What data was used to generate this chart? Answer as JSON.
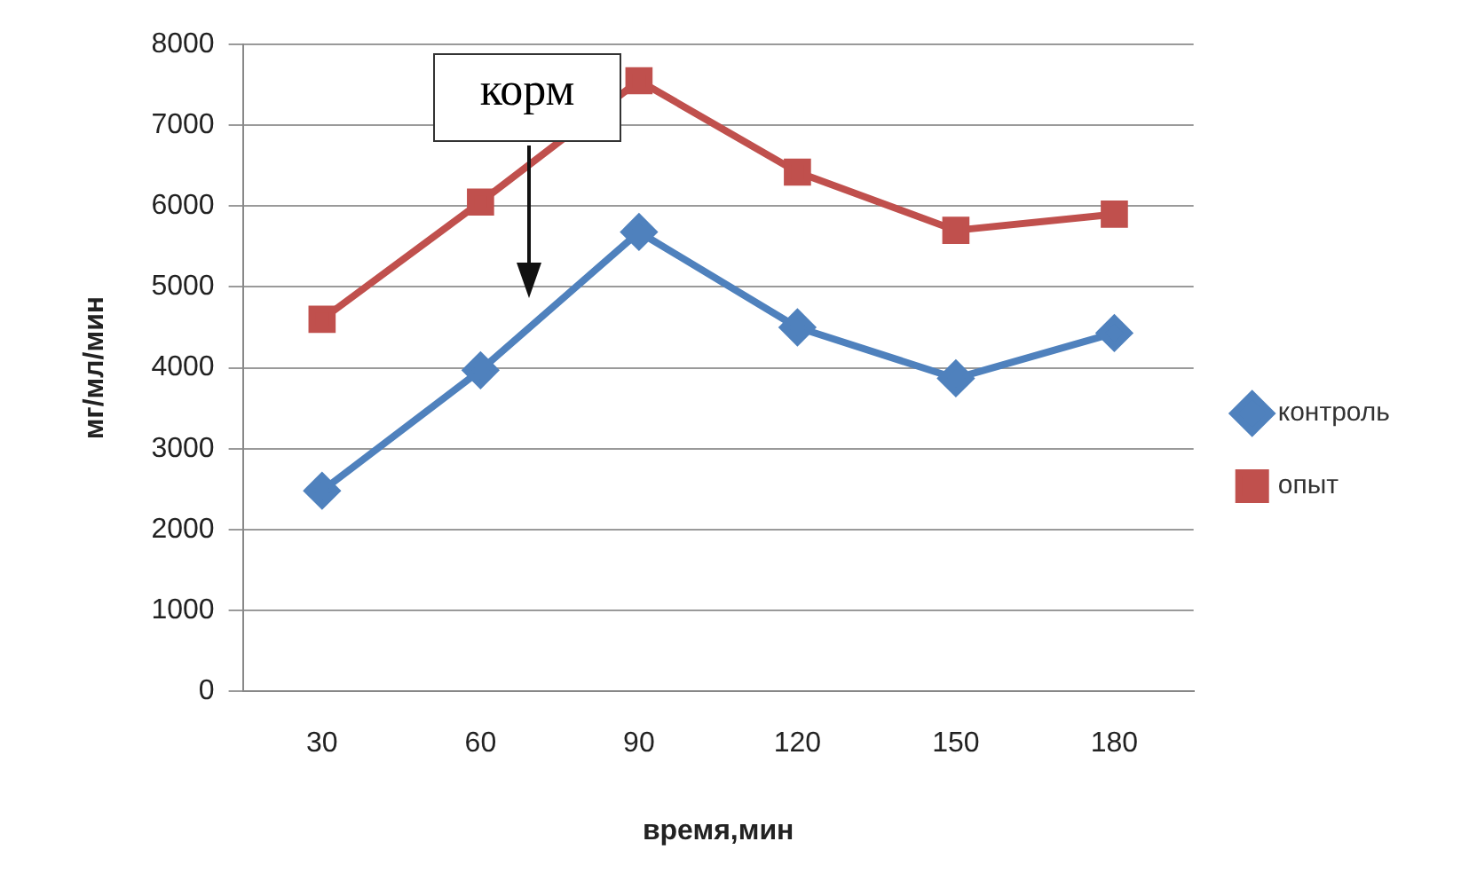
{
  "chart_data": {
    "type": "line",
    "xlabel": "время,мин",
    "ylabel": "мг/мл/мин",
    "categories": [
      "30",
      "60",
      "90",
      "120",
      "150",
      "180"
    ],
    "series": [
      {
        "name": "контроль",
        "color": "#4f81bd",
        "marker": "diamond",
        "values": [
          2480,
          3970,
          5680,
          4500,
          3870,
          4430
        ]
      },
      {
        "name": "опыт",
        "color": "#c0504d",
        "marker": "square",
        "values": [
          4600,
          6050,
          7550,
          6420,
          5700,
          5900
        ]
      }
    ],
    "ylim": [
      0,
      8000
    ],
    "yticks": [
      0,
      1000,
      2000,
      3000,
      4000,
      5000,
      6000,
      7000,
      8000
    ],
    "grid": "y",
    "legend": "right",
    "line_style": "solid",
    "annotations": [
      "корм"
    ]
  }
}
